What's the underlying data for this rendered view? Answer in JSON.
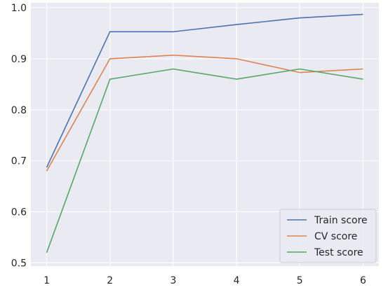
{
  "chart_data": {
    "type": "line",
    "x": [
      1,
      2,
      3,
      4,
      5,
      6
    ],
    "series": [
      {
        "name": "Train score",
        "color": "#4c72b0",
        "values": [
          0.687,
          0.953,
          0.953,
          0.967,
          0.98,
          0.987
        ]
      },
      {
        "name": "CV score",
        "color": "#dd8452",
        "values": [
          0.68,
          0.9,
          0.907,
          0.9,
          0.873,
          0.88
        ]
      },
      {
        "name": "Test score",
        "color": "#55a868",
        "values": [
          0.52,
          0.86,
          0.88,
          0.86,
          0.88,
          0.86
        ]
      }
    ],
    "xticks": [
      "1",
      "2",
      "3",
      "4",
      "5",
      "6"
    ],
    "yticks": [
      "0.5",
      "0.6",
      "0.7",
      "0.8",
      "0.9",
      "1.0"
    ],
    "xlim": [
      0.75,
      6.25
    ],
    "ylim": [
      0.4936,
      1.0097
    ],
    "grid": true,
    "legend_position": "bottom-right",
    "background": "#eaeaf2",
    "grid_color": "#ffffff"
  }
}
